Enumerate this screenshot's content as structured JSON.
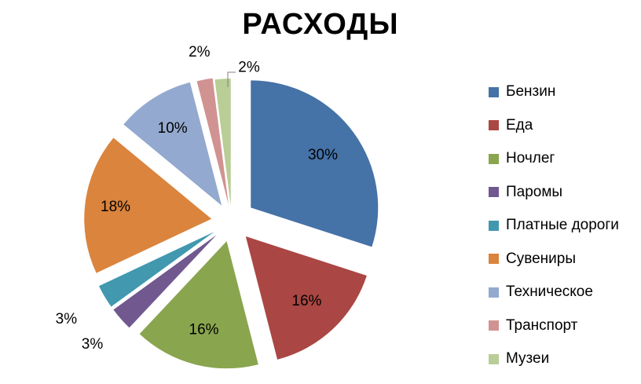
{
  "chart_data": {
    "type": "pie",
    "title": "РАСХОДЫ",
    "legend_position": "right",
    "slices": [
      {
        "name": "Бензин",
        "value": 30,
        "label": "30%",
        "color": "#4572A7"
      },
      {
        "name": "Еда",
        "value": 16,
        "label": "16%",
        "color": "#AA4643"
      },
      {
        "name": "Ночлег",
        "value": 16,
        "label": "16%",
        "color": "#89A54E"
      },
      {
        "name": "Паромы",
        "value": 3,
        "label": "3%",
        "color": "#71588F"
      },
      {
        "name": "Платные дороги",
        "value": 3,
        "label": "3%",
        "color": "#4198AF"
      },
      {
        "name": "Сувениры",
        "value": 18,
        "label": "18%",
        "color": "#DB843D"
      },
      {
        "name": "Техническое",
        "value": 10,
        "label": "10%",
        "color": "#93A9CF"
      },
      {
        "name": "Транспорт",
        "value": 2,
        "label": "2%",
        "color": "#D19392"
      },
      {
        "name": "Музеи",
        "value": 2,
        "label": "2%",
        "color": "#B9CD96"
      }
    ]
  }
}
